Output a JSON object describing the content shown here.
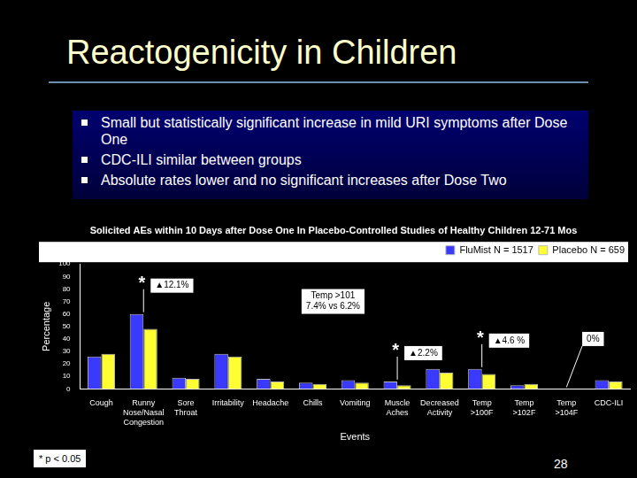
{
  "slide": {
    "title": "Reactogenicity in Children",
    "bullets": [
      "Small but statistically significant increase in mild URI symptoms after Dose One",
      "CDC-ILI similar between groups",
      "Absolute rates lower and no significant increases after Dose Two"
    ],
    "footnote": "* p < 0.05",
    "page_number": 28
  },
  "chart_data": {
    "type": "bar",
    "title": "Solicited AEs within 10 Days after Dose One In Placebo-Controlled Studies of Healthy Children 12-71 Mos",
    "x_label": "Events",
    "y_label": "Percentage",
    "categories": [
      "Cough",
      "Runny Nose/Nasal Congestion",
      "Sore Throat",
      "Irritability",
      "Headache",
      "Chills",
      "Vomiting",
      "Muscle Aches",
      "Decreased Activity",
      "Temp >100F",
      "Temp >102F",
      "Temp >104F",
      "CDC-ILI"
    ],
    "series": [
      {
        "name": "FluMist N = 1517",
        "color": "#3a3aff",
        "values": [
          26,
          60,
          9,
          28,
          8,
          5,
          7,
          6,
          16,
          16,
          3,
          0,
          7
        ]
      },
      {
        "name": "Placebo N = 659",
        "color": "#ffff33",
        "values": [
          28,
          48,
          8,
          26,
          6,
          4,
          5,
          3,
          13,
          12,
          4,
          0,
          6
        ]
      }
    ],
    "ylim": [
      0,
      100
    ],
    "yticks": [
      0,
      10,
      20,
      30,
      40,
      50,
      60,
      70,
      80,
      90,
      100
    ],
    "grid": false,
    "legend": "upper right",
    "annotations": [
      {
        "category": "Runny Nose/Nasal Congestion",
        "symbol": "*",
        "label": "▲12.1%"
      },
      {
        "category": "Muscle Aches",
        "symbol": "*",
        "label": "▲2.2%"
      },
      {
        "category": "Temp >100F",
        "symbol": "*",
        "label": "▲4.6 %"
      },
      {
        "category": "Temp >104F",
        "label": "0%"
      }
    ],
    "notes": [
      {
        "lines": [
          "Temp >101",
          "7.4% vs 6.2%"
        ]
      }
    ]
  }
}
